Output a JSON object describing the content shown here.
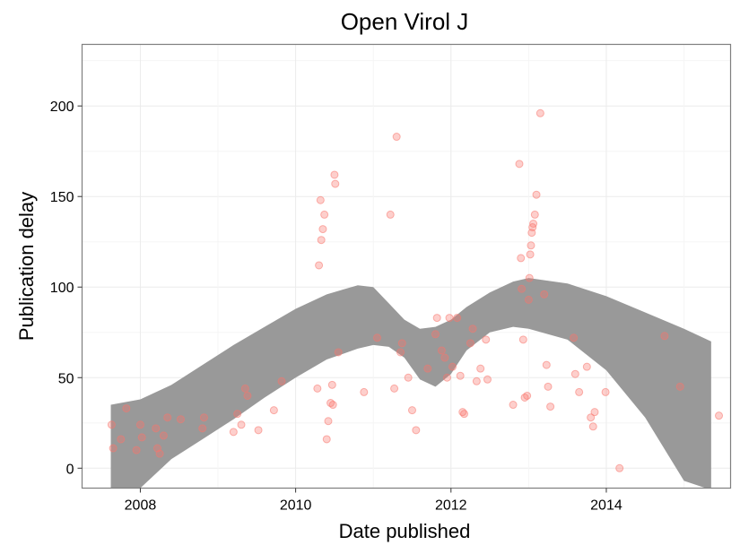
{
  "chart_data": {
    "type": "scatter",
    "title": "Open Virol J",
    "xlabel": "Date published",
    "ylabel": "Publication delay",
    "xlim": [
      2007.25,
      2015.6
    ],
    "ylim": [
      -11,
      234
    ],
    "x_ticks": [
      2008,
      2010,
      2012,
      2014
    ],
    "x_tick_labels": [
      "2008",
      "2010",
      "2012",
      "2014"
    ],
    "y_ticks": [
      0,
      50,
      100,
      150,
      200
    ],
    "y_tick_labels": [
      "0",
      "50",
      "100",
      "150",
      "200"
    ],
    "grid": true,
    "legend": "none",
    "colors": {
      "points": "#f8766d",
      "band": "#999999",
      "panel_border": "#7f7f7f"
    },
    "smooth_band": {
      "x": [
        2007.62,
        2008.0,
        2008.4,
        2008.8,
        2009.2,
        2009.6,
        2010.0,
        2010.4,
        2010.8,
        2011.0,
        2011.2,
        2011.4,
        2011.6,
        2011.8,
        2012.0,
        2012.2,
        2012.5,
        2012.8,
        2013.0,
        2013.5,
        2014.0,
        2014.5,
        2015.0,
        2015.35
      ],
      "upper": [
        35,
        38,
        46,
        57,
        68,
        78,
        88,
        96,
        101,
        100,
        91,
        82,
        77,
        78,
        82,
        89,
        97,
        103,
        105,
        102,
        95,
        86,
        77,
        70
      ],
      "lower": [
        -12,
        -11,
        5,
        16,
        27,
        39,
        50,
        60,
        66,
        68,
        67,
        61,
        49,
        45,
        52,
        65,
        75,
        78,
        77,
        71,
        54,
        28,
        -7,
        -12
      ]
    },
    "points": {
      "x": [
        2007.63,
        2007.65,
        2007.75,
        2007.82,
        2007.95,
        2008.0,
        2008.02,
        2008.2,
        2008.22,
        2008.25,
        2008.3,
        2008.35,
        2008.52,
        2008.8,
        2008.82,
        2009.2,
        2009.25,
        2009.3,
        2009.35,
        2009.38,
        2009.52,
        2009.72,
        2009.82,
        2010.28,
        2010.3,
        2010.32,
        2010.33,
        2010.35,
        2010.37,
        2010.4,
        2010.42,
        2010.45,
        2010.47,
        2010.48,
        2010.5,
        2010.51,
        2010.55,
        2010.88,
        2011.05,
        2011.22,
        2011.27,
        2011.3,
        2011.35,
        2011.37,
        2011.45,
        2011.5,
        2011.55,
        2011.7,
        2011.8,
        2011.82,
        2011.88,
        2011.92,
        2011.95,
        2011.98,
        2012.02,
        2012.08,
        2012.12,
        2012.15,
        2012.17,
        2012.25,
        2012.28,
        2012.33,
        2012.38,
        2012.45,
        2012.47,
        2012.8,
        2012.88,
        2012.9,
        2012.91,
        2012.93,
        2012.95,
        2012.98,
        2013.0,
        2013.01,
        2013.02,
        2013.03,
        2013.04,
        2013.05,
        2013.06,
        2013.08,
        2013.1,
        2013.15,
        2013.2,
        2013.23,
        2013.25,
        2013.28,
        2013.58,
        2013.6,
        2013.65,
        2013.75,
        2013.8,
        2013.83,
        2013.85,
        2013.99,
        2014.17,
        2014.75,
        2014.95,
        2015.45
      ],
      "y": [
        24,
        11,
        16,
        33,
        10,
        24,
        17,
        22,
        11,
        8,
        18,
        28,
        27,
        22,
        28,
        20,
        30,
        24,
        44,
        40,
        21,
        32,
        48,
        44,
        112,
        148,
        126,
        132,
        140,
        16,
        26,
        36,
        46,
        35,
        162,
        157,
        64,
        42,
        72,
        140,
        44,
        183,
        64,
        69,
        50,
        32,
        21,
        55,
        74,
        83,
        65,
        61,
        50,
        83,
        56,
        83,
        51,
        31,
        30,
        69,
        77,
        48,
        55,
        71,
        49,
        35,
        168,
        116,
        99,
        71,
        39,
        40,
        93,
        105,
        118,
        123,
        130,
        133,
        135,
        140,
        151,
        196,
        96,
        57,
        45,
        34,
        72,
        52,
        42,
        56,
        28,
        23,
        31,
        42,
        0,
        73,
        45,
        29
      ]
    }
  }
}
